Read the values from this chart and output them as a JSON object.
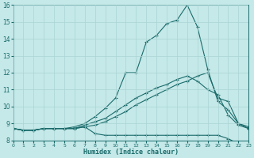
{
  "xlabel": "Humidex (Indice chaleur)",
  "xlim": [
    0,
    23
  ],
  "ylim": [
    8,
    16
  ],
  "yticks": [
    8,
    9,
    10,
    11,
    12,
    13,
    14,
    15,
    16
  ],
  "xticks": [
    0,
    1,
    2,
    3,
    4,
    5,
    6,
    7,
    8,
    9,
    10,
    11,
    12,
    13,
    14,
    15,
    16,
    17,
    18,
    19,
    20,
    21,
    22,
    23
  ],
  "bg_color": "#c5e8e8",
  "line_color": "#1a6b6b",
  "grid_color": "#aad4d4",
  "lines": [
    [
      8.7,
      8.6,
      8.6,
      8.7,
      8.7,
      8.7,
      8.7,
      8.8,
      8.4,
      8.3,
      8.3,
      8.3,
      8.3,
      8.3,
      8.3,
      8.3,
      8.3,
      8.3,
      8.3,
      8.3,
      8.3,
      8.1,
      7.8,
      7.7
    ],
    [
      8.7,
      8.6,
      8.6,
      8.7,
      8.7,
      8.7,
      8.7,
      8.8,
      8.9,
      9.1,
      9.4,
      9.7,
      10.1,
      10.4,
      10.7,
      11.0,
      11.3,
      11.5,
      11.8,
      12.0,
      10.5,
      10.3,
      9.0,
      8.7
    ],
    [
      8.7,
      8.6,
      8.6,
      8.7,
      8.7,
      8.7,
      8.7,
      8.9,
      9.1,
      9.3,
      9.7,
      10.1,
      10.5,
      10.8,
      11.1,
      11.3,
      11.6,
      11.8,
      11.5,
      11.0,
      10.7,
      9.5,
      8.9,
      8.7
    ],
    [
      8.7,
      8.6,
      8.6,
      8.7,
      8.7,
      8.7,
      8.8,
      9.0,
      9.4,
      9.9,
      10.5,
      12.0,
      12.0,
      13.8,
      14.2,
      14.9,
      15.1,
      16.0,
      14.7,
      12.2,
      10.3,
      9.8,
      9.0,
      8.8
    ]
  ]
}
